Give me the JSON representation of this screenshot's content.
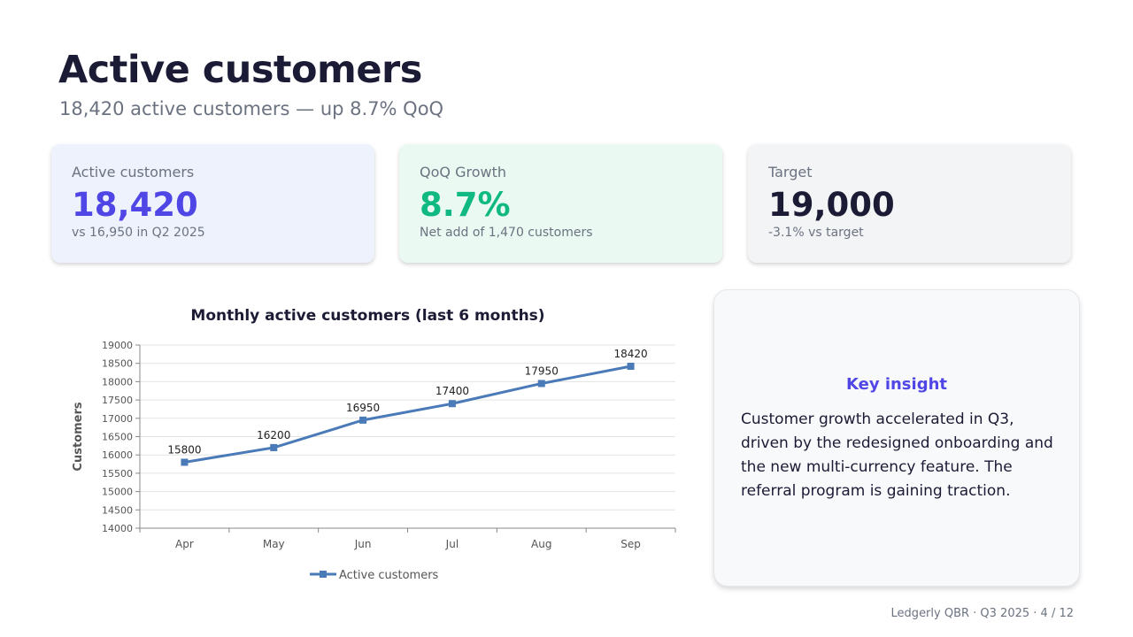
{
  "slide": {
    "title": "Active customers",
    "subtitle": "18,420 active customers — up 8.7% QoQ",
    "footer": "Ledgerly QBR · Q3 2025 · 4 / 12"
  },
  "kpis": [
    {
      "label": "Active customers",
      "value": "18,420",
      "sub": "vs 16,950 in Q2 2025",
      "color": "#4f46e5"
    },
    {
      "label": "QoQ Growth",
      "value": "8.7%",
      "sub": "Net add of 1,470 customers",
      "color": "#10b981"
    },
    {
      "label": "Target",
      "value": "19,000",
      "sub": "-3.1% vs target",
      "color": "#1b1b35"
    }
  ],
  "insight": {
    "title": "Key insight",
    "text": "Customer growth accelerated in Q3, driven by the redesigned onboarding and the new multi-currency feature. The referral program is gaining traction."
  },
  "chart_data": {
    "type": "line",
    "title": "Monthly active customers (last 6 months)",
    "xlabel": "",
    "ylabel": "Customers",
    "categories": [
      "Apr",
      "May",
      "Jun",
      "Jul",
      "Aug",
      "Sep"
    ],
    "series": [
      {
        "name": "Active customers",
        "values": [
          15800,
          16200,
          16950,
          17400,
          17950,
          18420
        ],
        "color": "#4a7ab8"
      }
    ],
    "ylim": [
      14000,
      19000
    ],
    "yticks": [
      14000,
      14500,
      15000,
      15500,
      16000,
      16500,
      17000,
      17500,
      18000,
      18500,
      19000
    ],
    "data_labels": true,
    "grid": true,
    "legend": "bottom"
  }
}
